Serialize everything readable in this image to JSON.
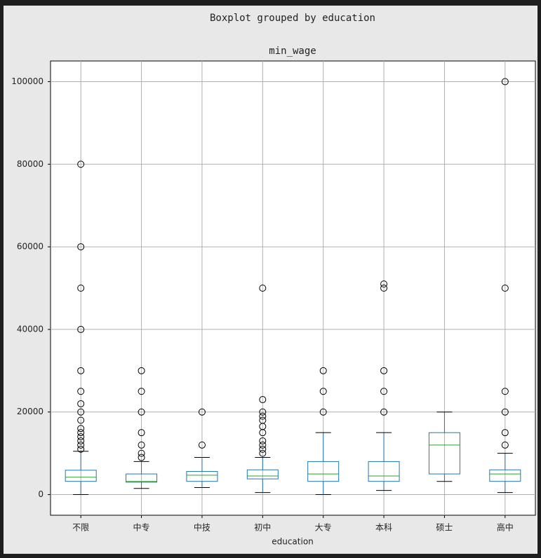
{
  "chart_data": {
    "type": "box",
    "title": "Boxplot grouped by education",
    "subtitle": "min_wage",
    "x_label": "education",
    "categories": [
      "不限",
      "中专",
      "中技",
      "初中",
      "大专",
      "本科",
      "硕士",
      "高中"
    ],
    "boxes": [
      {
        "low": 0,
        "q1": 3200,
        "median": 4200,
        "q3": 5900,
        "high": 10500,
        "outliers": [
          80000,
          60000,
          50000,
          40000,
          30000,
          25000,
          22000,
          20000,
          18000,
          16000,
          15000,
          14000,
          13000,
          12000,
          11000
        ]
      },
      {
        "low": 1500,
        "q1": 3000,
        "median": 3200,
        "q3": 5000,
        "high": 8000,
        "outliers": [
          30000,
          25000,
          20000,
          15000,
          12000,
          10000,
          9000
        ]
      },
      {
        "low": 1700,
        "q1": 3200,
        "median": 4700,
        "q3": 5600,
        "high": 9000,
        "outliers": [
          20000,
          12000
        ]
      },
      {
        "low": 500,
        "q1": 3800,
        "median": 4500,
        "q3": 6000,
        "high": 9000,
        "outliers": [
          50000,
          23000,
          20000,
          19000,
          18000,
          16500,
          15000,
          13000,
          12000,
          11000,
          10000
        ]
      },
      {
        "low": 0,
        "q1": 3200,
        "median": 5000,
        "q3": 8000,
        "high": 15000,
        "outliers": [
          30000,
          25000,
          20000
        ]
      },
      {
        "low": 1000,
        "q1": 3200,
        "median": 4500,
        "q3": 8000,
        "high": 15000,
        "outliers": [
          51000,
          50000,
          30000,
          25000,
          20000
        ]
      },
      {
        "low": 3200,
        "q1": 5000,
        "median": 12000,
        "q3": 15000,
        "high": 20000,
        "outliers": []
      },
      {
        "low": 500,
        "q1": 3200,
        "median": 5000,
        "q3": 6000,
        "high": 10000,
        "outliers": [
          100000,
          50000,
          25000,
          20000,
          15000,
          12000
        ]
      }
    ],
    "box_color": "#1f77b4",
    "median_color": "#2ca02c",
    "flier_color": "#000000",
    "ylim": [
      -5000,
      105000
    ],
    "yticks": [
      0,
      20000,
      40000,
      60000,
      80000,
      100000
    ],
    "grid": true
  }
}
